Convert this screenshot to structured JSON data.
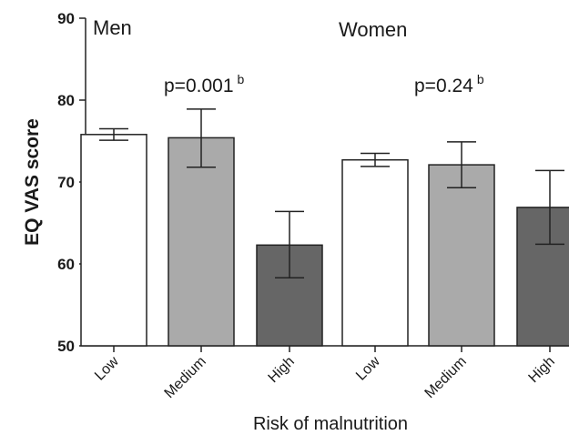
{
  "chart_data": {
    "type": "bar",
    "ylabel": "EQ VAS score",
    "xlabel": "Risk of malnutrition",
    "ylim": [
      50,
      90
    ],
    "yticks": [
      50,
      60,
      70,
      80,
      90
    ],
    "categories": [
      "Low",
      "Medium",
      "High",
      "Low",
      "Medium",
      "High"
    ],
    "groups": [
      {
        "label": "Men",
        "p_text": "p=0.001",
        "p_sup": "b"
      },
      {
        "label": "Women",
        "p_text": "p=0.24",
        "p_sup": "b"
      }
    ],
    "bars": [
      {
        "group": "Men",
        "category": "Low",
        "value": 75.8,
        "err_low": 75.1,
        "err_high": 76.5,
        "color": "#ffffff"
      },
      {
        "group": "Men",
        "category": "Medium",
        "value": 75.4,
        "err_low": 71.8,
        "err_high": 78.9,
        "color": "#aaaaaa"
      },
      {
        "group": "Men",
        "category": "High",
        "value": 62.3,
        "err_low": 58.3,
        "err_high": 66.4,
        "color": "#666666"
      },
      {
        "group": "Women",
        "category": "Low",
        "value": 72.7,
        "err_low": 71.9,
        "err_high": 73.5,
        "color": "#ffffff"
      },
      {
        "group": "Women",
        "category": "Medium",
        "value": 72.1,
        "err_low": 69.3,
        "err_high": 74.9,
        "color": "#aaaaaa"
      },
      {
        "group": "Women",
        "category": "High",
        "value": 66.9,
        "err_low": 62.4,
        "err_high": 71.4,
        "color": "#666666"
      }
    ],
    "grid": false,
    "legend": "none"
  }
}
